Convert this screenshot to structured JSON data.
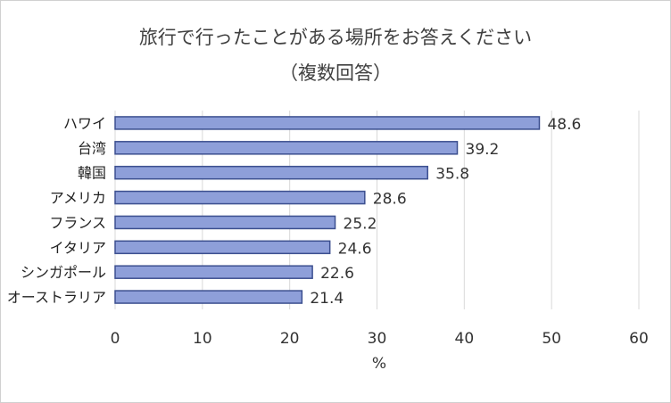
{
  "chart_data": {
    "type": "bar",
    "orientation": "horizontal",
    "title": "旅行で行ったことがある場所をお答えください",
    "subtitle": "（複数回答）",
    "xlabel": "%",
    "ylabel": "",
    "categories": [
      "ハワイ",
      "台湾",
      "韓国",
      "アメリカ",
      "フランス",
      "イタリア",
      "シンガポール",
      "オーストラリア"
    ],
    "values": [
      48.6,
      39.2,
      35.8,
      28.6,
      25.2,
      24.6,
      22.6,
      21.4
    ],
    "data_labels": [
      "48.6",
      "39.2",
      "35.8",
      "28.6",
      "25.2",
      "24.6",
      "22.6",
      "21.4"
    ],
    "xlim": [
      0,
      60
    ],
    "xticks": [
      0,
      10,
      20,
      30,
      40,
      50,
      60
    ],
    "grid": "vertical",
    "legend": "none",
    "colors": {
      "bar_fill": "#8e9fd9",
      "bar_stroke": "#3c4f8f",
      "grid": "#d9d9d9"
    }
  }
}
